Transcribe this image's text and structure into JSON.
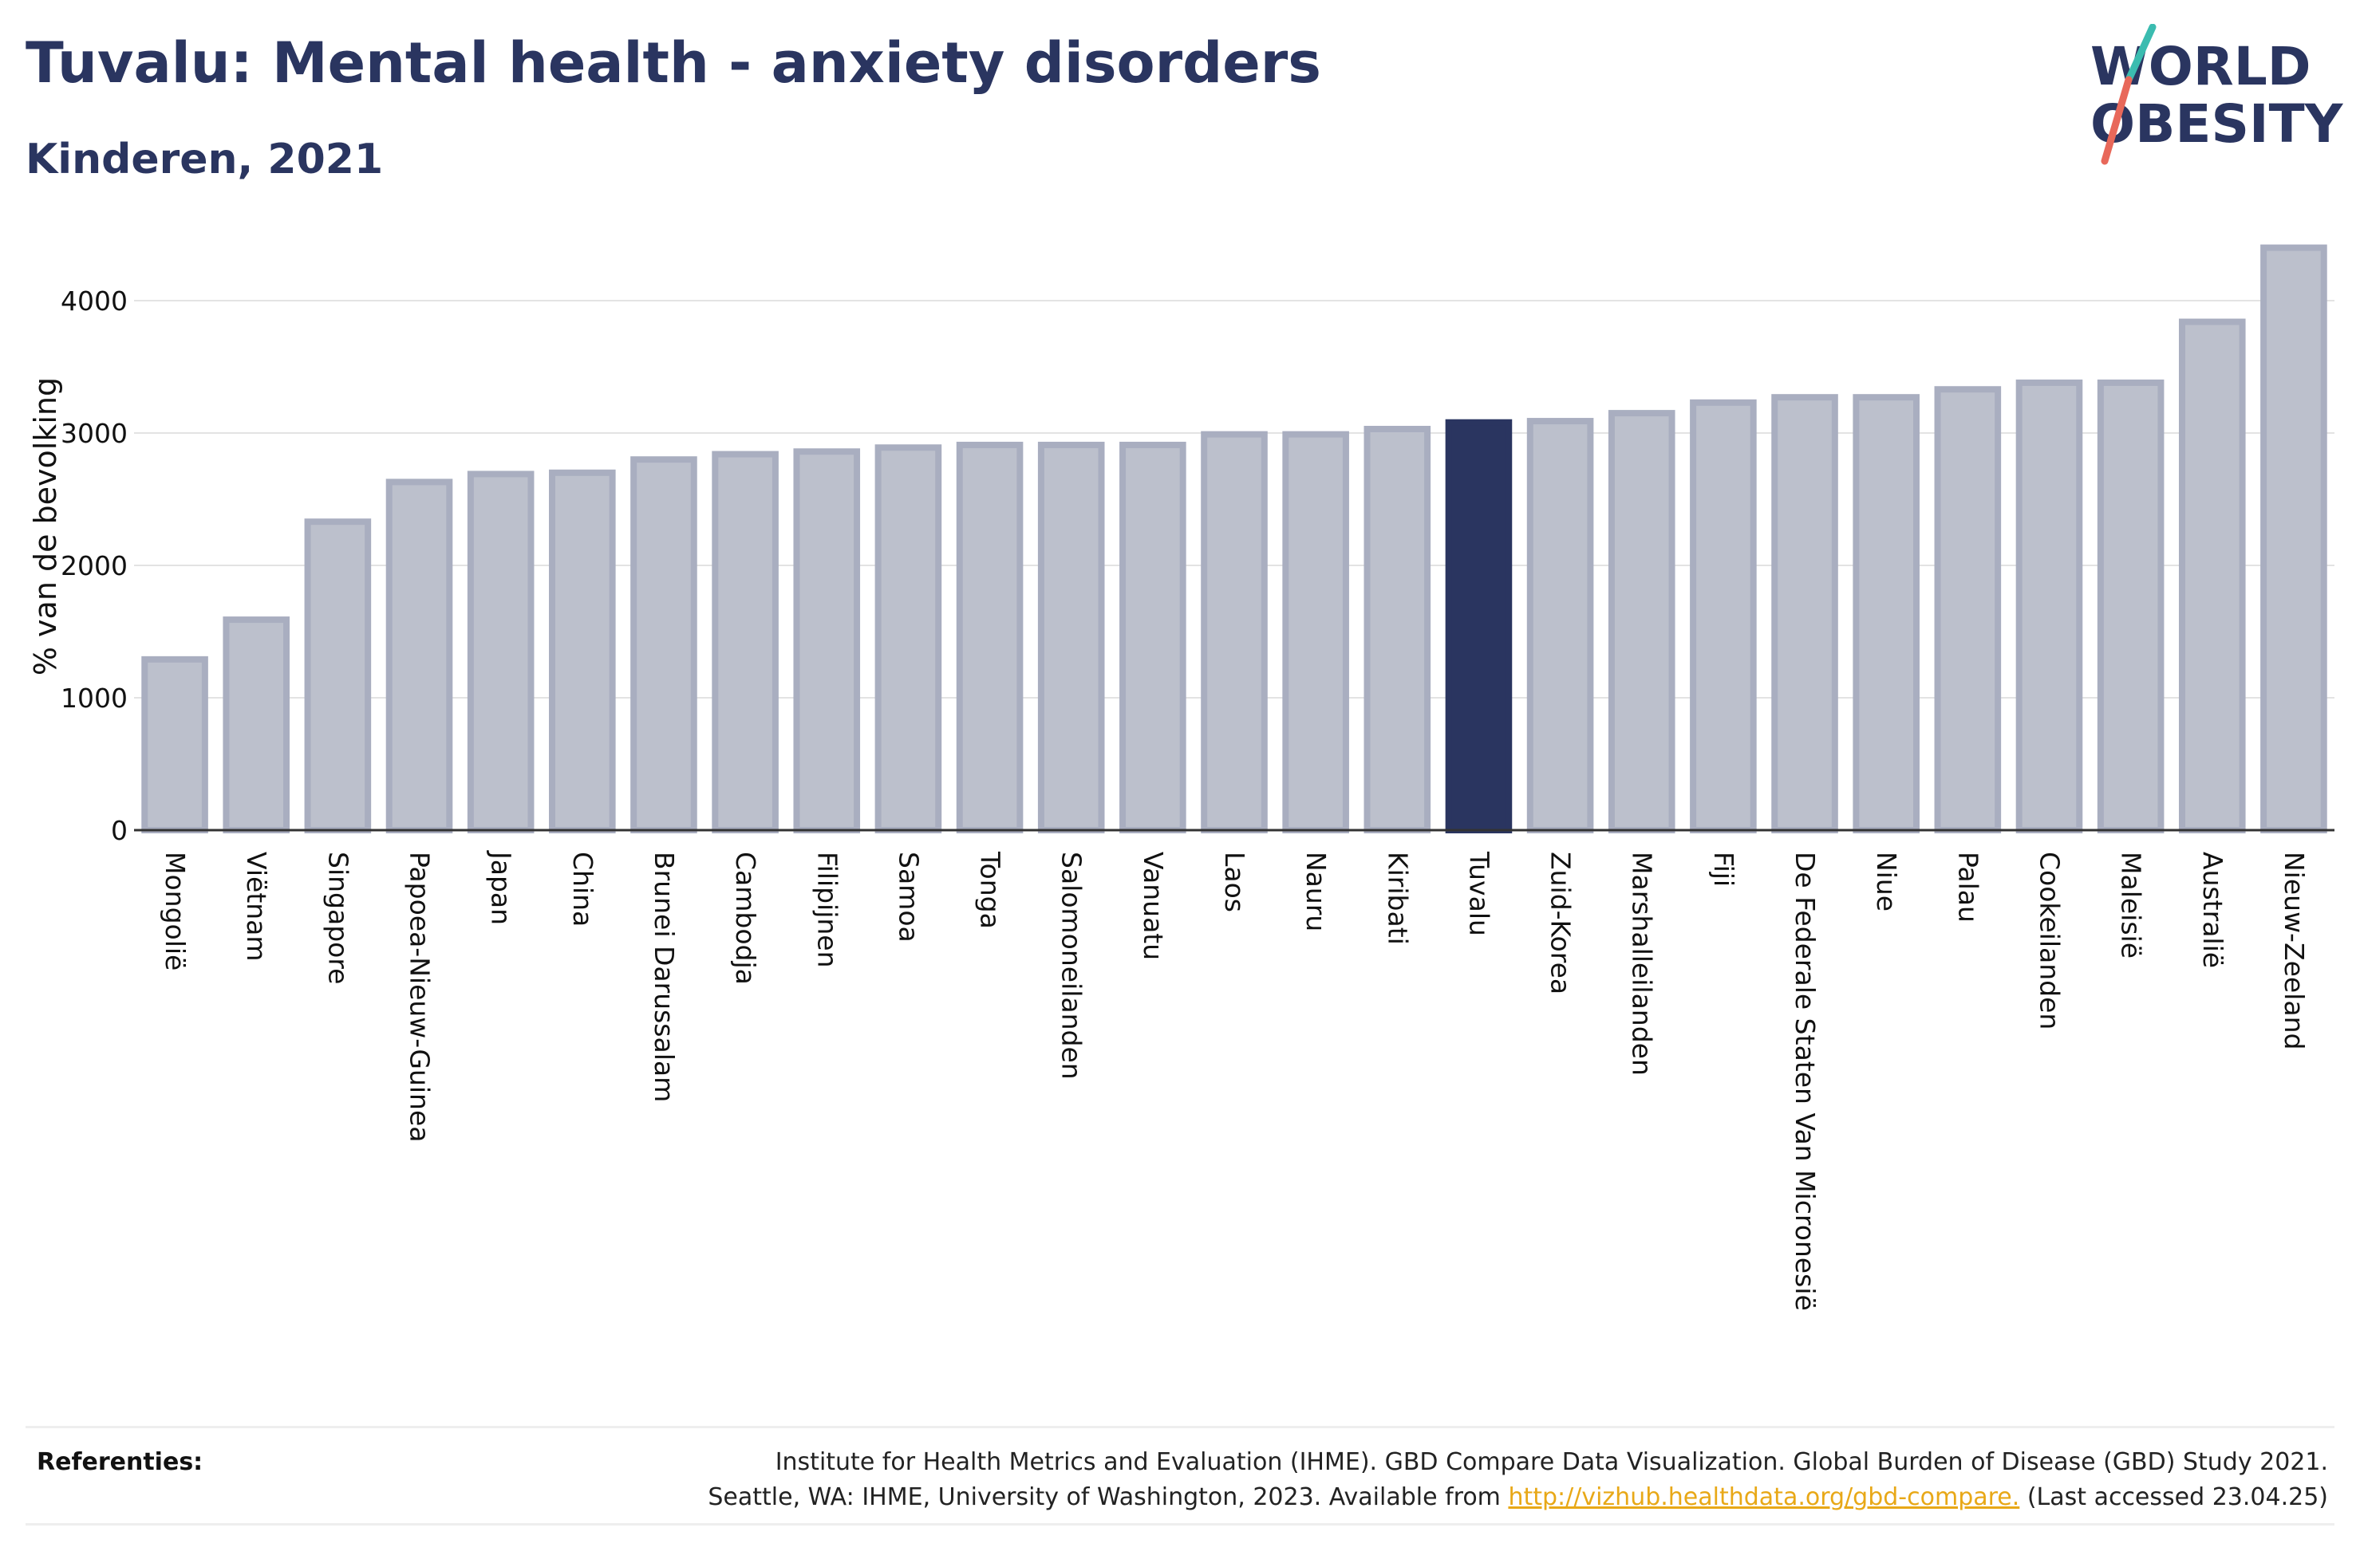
{
  "header": {
    "title": "Tuvalu: Mental health - anxiety disorders",
    "subtitle": "Kinderen, 2021"
  },
  "logo": {
    "line1": "WORLD",
    "line2": "OBESITY",
    "colors": {
      "text": "#2a3560",
      "slash_top": "#3bbcb0",
      "slash_bottom": "#e8685a"
    }
  },
  "chart_data": {
    "type": "bar",
    "ylabel": "% van de bevolking",
    "xlabel": "",
    "ylim": [
      0,
      4500
    ],
    "yticks": [
      0,
      1000,
      2000,
      3000,
      4000
    ],
    "grid": true,
    "highlight": "Tuvalu",
    "colors": {
      "bar": "#bcc0cc",
      "bar_border": "#a9aec0",
      "highlight": "#2a3560"
    },
    "categories": [
      "Mongolië",
      "Viëtnam",
      "Singapore",
      "Papoea-Nieuw-Guinea",
      "Japan",
      "China",
      "Brunei Darussalam",
      "Cambodja",
      "Filipijnen",
      "Samoa",
      "Tonga",
      "Salomoneilanden",
      "Vanuatu",
      "Laos",
      "Nauru",
      "Kiribati",
      "Tuvalu",
      "Zuid-Korea",
      "Marshalleilanden",
      "Fiji",
      "De Federale Staten Van Micronesië",
      "Niue",
      "Palau",
      "Cookeilanden",
      "Maleisië",
      "Australië",
      "Nieuw-Zeeland"
    ],
    "values": [
      1290,
      1590,
      2330,
      2630,
      2690,
      2700,
      2800,
      2840,
      2860,
      2890,
      2910,
      2910,
      2910,
      2990,
      2990,
      3030,
      3080,
      3090,
      3150,
      3230,
      3270,
      3270,
      3330,
      3380,
      3380,
      3840,
      4400
    ]
  },
  "references": {
    "label": "Referenties:",
    "line1": "Institute for Health Metrics and Evaluation (IHME). GBD Compare Data Visualization. Global Burden of Disease (GBD) Study 2021.",
    "line2_prefix": "Seattle, WA: IHME, University of Washington, 2023. Available from ",
    "link": "http://vizhub.healthdata.org/gbd-compare.",
    "line2_suffix": " (Last accessed 23.04.25)"
  }
}
